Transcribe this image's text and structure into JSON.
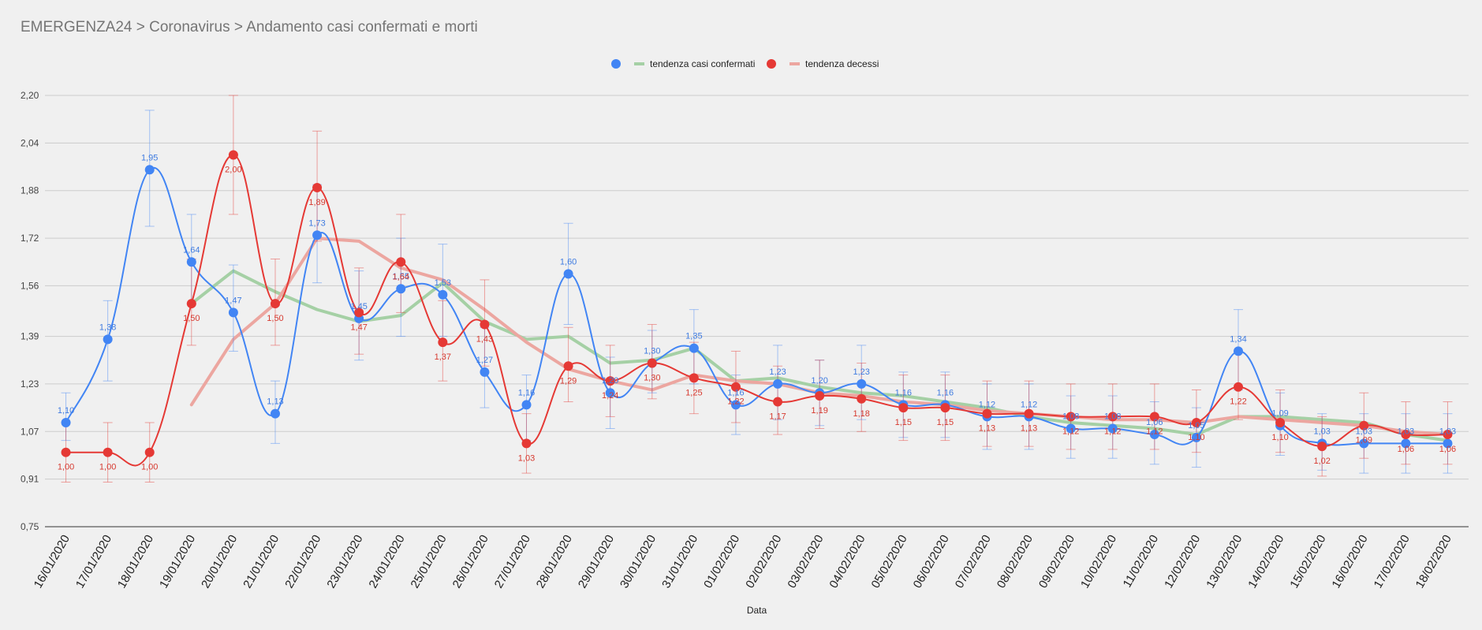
{
  "header": {
    "title": "EMERGENZA24 > Coronavirus > Andamento casi confermati e morti"
  },
  "colors": {
    "background": "#f0f0f0",
    "confirmed": "#4285f4",
    "confirmed_trend": "#a5d0a5",
    "deaths": "#e53935",
    "deaths_trend": "#eca6a0",
    "grid": "#cccccc"
  },
  "chart_data": {
    "type": "line",
    "xlabel": "Data",
    "ylabel": "",
    "ylim": [
      0.75,
      2.2
    ],
    "yticks": [
      "0,75",
      "0,91",
      "1,07",
      "1,23",
      "1,39",
      "1,56",
      "1,72",
      "1,88",
      "2,04",
      "2,20"
    ],
    "ytick_values": [
      0.75,
      0.91,
      1.07,
      1.23,
      1.39,
      1.56,
      1.72,
      1.88,
      2.04,
      2.2
    ],
    "grid": true,
    "legend_position": "top-center",
    "categories": [
      "16/01/2020",
      "17/01/2020",
      "18/01/2020",
      "19/01/2020",
      "20/01/2020",
      "21/01/2020",
      "22/01/2020",
      "23/01/2020",
      "24/01/2020",
      "25/01/2020",
      "26/01/2020",
      "27/01/2020",
      "28/01/2020",
      "29/01/2020",
      "30/01/2020",
      "31/01/2020",
      "01/02/2020",
      "02/02/2020",
      "03/02/2020",
      "04/02/2020",
      "05/02/2020",
      "06/02/2020",
      "07/02/2020",
      "08/02/2020",
      "09/02/2020",
      "10/02/2020",
      "11/02/2020",
      "12/02/2020",
      "13/02/2020",
      "14/02/2020",
      "15/02/2020",
      "16/02/2020",
      "17/02/2020",
      "18/02/2020"
    ],
    "series": [
      {
        "key": "confirmed",
        "values": [
          1.1,
          1.38,
          1.95,
          1.64,
          1.47,
          1.13,
          1.73,
          1.45,
          1.55,
          1.53,
          1.27,
          1.16,
          1.6,
          1.2,
          1.3,
          1.35,
          1.16,
          1.23,
          1.2,
          1.23,
          1.16,
          1.16,
          1.12,
          1.12,
          1.08,
          1.08,
          1.06,
          1.05,
          1.34,
          1.09,
          1.03,
          1.03,
          1.03,
          1.03
        ],
        "labels": [
          "1,10",
          "1,38",
          "1,95",
          "1,64",
          "1,47",
          "1,13",
          "1,73",
          "1,45",
          "1,55",
          "1,53",
          "1,27",
          "1,16",
          "1,60",
          "1,20",
          "1,30",
          "1,35",
          "1,16",
          "1,23",
          "1,20",
          "1,23",
          "1,16",
          "1,16",
          "1,12",
          "1,12",
          "1,08",
          "1,08",
          "1,06",
          "1,05",
          "1,34",
          "1,09",
          "1,03",
          "1,03",
          "1,03",
          "1,03"
        ],
        "error_low": [
          1.04,
          1.24,
          1.76,
          1.5,
          1.34,
          1.03,
          1.57,
          1.31,
          1.39,
          1.39,
          1.15,
          1.04,
          1.43,
          1.08,
          1.2,
          1.23,
          1.06,
          1.11,
          1.09,
          1.11,
          1.05,
          1.05,
          1.01,
          1.01,
          0.98,
          0.98,
          0.96,
          0.95,
          1.21,
          0.99,
          0.94,
          0.93,
          0.93,
          0.93
        ],
        "error_high": [
          1.2,
          1.51,
          2.15,
          1.8,
          1.63,
          1.24,
          1.9,
          1.61,
          1.72,
          1.7,
          1.42,
          1.26,
          1.77,
          1.32,
          1.41,
          1.48,
          1.26,
          1.36,
          1.31,
          1.36,
          1.27,
          1.27,
          1.23,
          1.23,
          1.19,
          1.19,
          1.17,
          1.15,
          1.48,
          1.2,
          1.13,
          1.13,
          1.13,
          1.13
        ]
      },
      {
        "key": "deaths",
        "values": [
          1.0,
          1.0,
          1.0,
          1.5,
          2.0,
          1.5,
          1.89,
          1.47,
          1.64,
          1.37,
          1.43,
          1.03,
          1.29,
          1.24,
          1.3,
          1.25,
          1.22,
          1.17,
          1.19,
          1.18,
          1.15,
          1.15,
          1.13,
          1.13,
          1.12,
          1.12,
          1.12,
          1.1,
          1.22,
          1.1,
          1.02,
          1.09,
          1.06,
          1.06
        ],
        "labels": [
          "1,00",
          "1,00",
          "1,00",
          "1,50",
          "2,00",
          "1,50",
          "1,89",
          "1,47",
          "1,64",
          "1,37",
          "1,43",
          "1,03",
          "1,29",
          "1,24",
          "1,30",
          "1,25",
          "1,22",
          "1,17",
          "1,19",
          "1,18",
          "1,15",
          "1,15",
          "1,13",
          "1,13",
          "1,12",
          "1,12",
          "1,12",
          "1,10",
          "1,22",
          "1,10",
          "1,02",
          "1,09",
          "1,06",
          "1,06"
        ],
        "error_low": [
          0.9,
          0.9,
          0.9,
          1.36,
          1.8,
          1.36,
          1.71,
          1.33,
          1.47,
          1.24,
          1.29,
          0.93,
          1.17,
          1.12,
          1.18,
          1.13,
          1.1,
          1.06,
          1.08,
          1.07,
          1.04,
          1.04,
          1.02,
          1.02,
          1.01,
          1.01,
          1.01,
          1.0,
          1.11,
          1.0,
          0.92,
          0.98,
          0.96,
          0.96
        ],
        "error_high": [
          1.1,
          1.1,
          1.1,
          1.65,
          2.2,
          1.65,
          2.08,
          1.62,
          1.8,
          1.51,
          1.58,
          1.13,
          1.42,
          1.36,
          1.43,
          1.37,
          1.34,
          1.29,
          1.31,
          1.3,
          1.26,
          1.26,
          1.24,
          1.24,
          1.23,
          1.23,
          1.23,
          1.21,
          1.34,
          1.21,
          1.12,
          1.2,
          1.17,
          1.17
        ]
      }
    ],
    "trends": [
      {
        "key": "confirmed_trend",
        "name": "tendenza casi confermati",
        "values": [
          null,
          null,
          null,
          1.5,
          1.61,
          1.54,
          1.48,
          1.44,
          1.46,
          1.57,
          1.44,
          1.38,
          1.39,
          1.3,
          1.31,
          1.35,
          1.24,
          1.25,
          1.22,
          1.2,
          1.19,
          1.17,
          1.15,
          1.12,
          1.1,
          1.09,
          1.08,
          1.06,
          1.12,
          1.12,
          1.11,
          1.1,
          1.06,
          1.04
        ]
      },
      {
        "key": "deaths_trend",
        "name": "tendenza decessi",
        "values": [
          null,
          null,
          null,
          1.16,
          1.38,
          1.5,
          1.72,
          1.71,
          1.62,
          1.58,
          1.48,
          1.37,
          1.28,
          1.24,
          1.21,
          1.26,
          1.24,
          1.23,
          1.2,
          1.19,
          1.17,
          1.16,
          1.14,
          1.13,
          1.12,
          1.11,
          1.11,
          1.1,
          1.12,
          1.11,
          1.1,
          1.09,
          1.07,
          1.06
        ]
      }
    ]
  }
}
